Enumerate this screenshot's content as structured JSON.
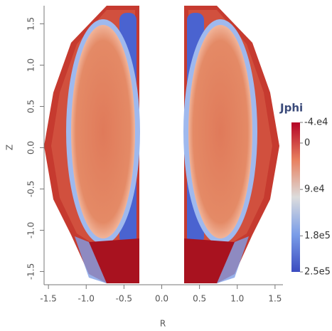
{
  "chart_data": {
    "type": "field-map",
    "colorbar_title": "Jphi",
    "x_label": "R",
    "y_label": "Z",
    "xlim": [
      -1.6,
      1.6
    ],
    "ylim": [
      -1.66,
      1.72
    ],
    "xticks": [
      -1.5,
      {
        "value": -1.0,
        "label": "-1.0"
      },
      -0.5,
      {
        "value": 0.0,
        "label": "0.0"
      },
      0.5,
      {
        "value": 1.0,
        "label": "1.0"
      },
      1.5
    ],
    "yticks": [
      -1.5,
      {
        "value": -1.0,
        "label": "-1.0"
      },
      -0.5,
      {
        "value": 0.0,
        "label": "0.0"
      },
      0.5,
      {
        "value": 1.0,
        "label": "1.0"
      },
      1.5
    ],
    "clim": [
      -40000,
      250000
    ],
    "cticks": [
      {
        "value": -40000,
        "label": "-4.e4"
      },
      0,
      {
        "value": 90000,
        "label": "9.e4"
      },
      {
        "value": 180000,
        "label": "1.8e5"
      },
      {
        "value": 250000,
        "label": "2.5e5"
      }
    ],
    "colorscale": [
      "#b40426",
      "#e8805f",
      "#dcdcdc",
      "#7a9de8",
      "#3b4cc0"
    ]
  }
}
